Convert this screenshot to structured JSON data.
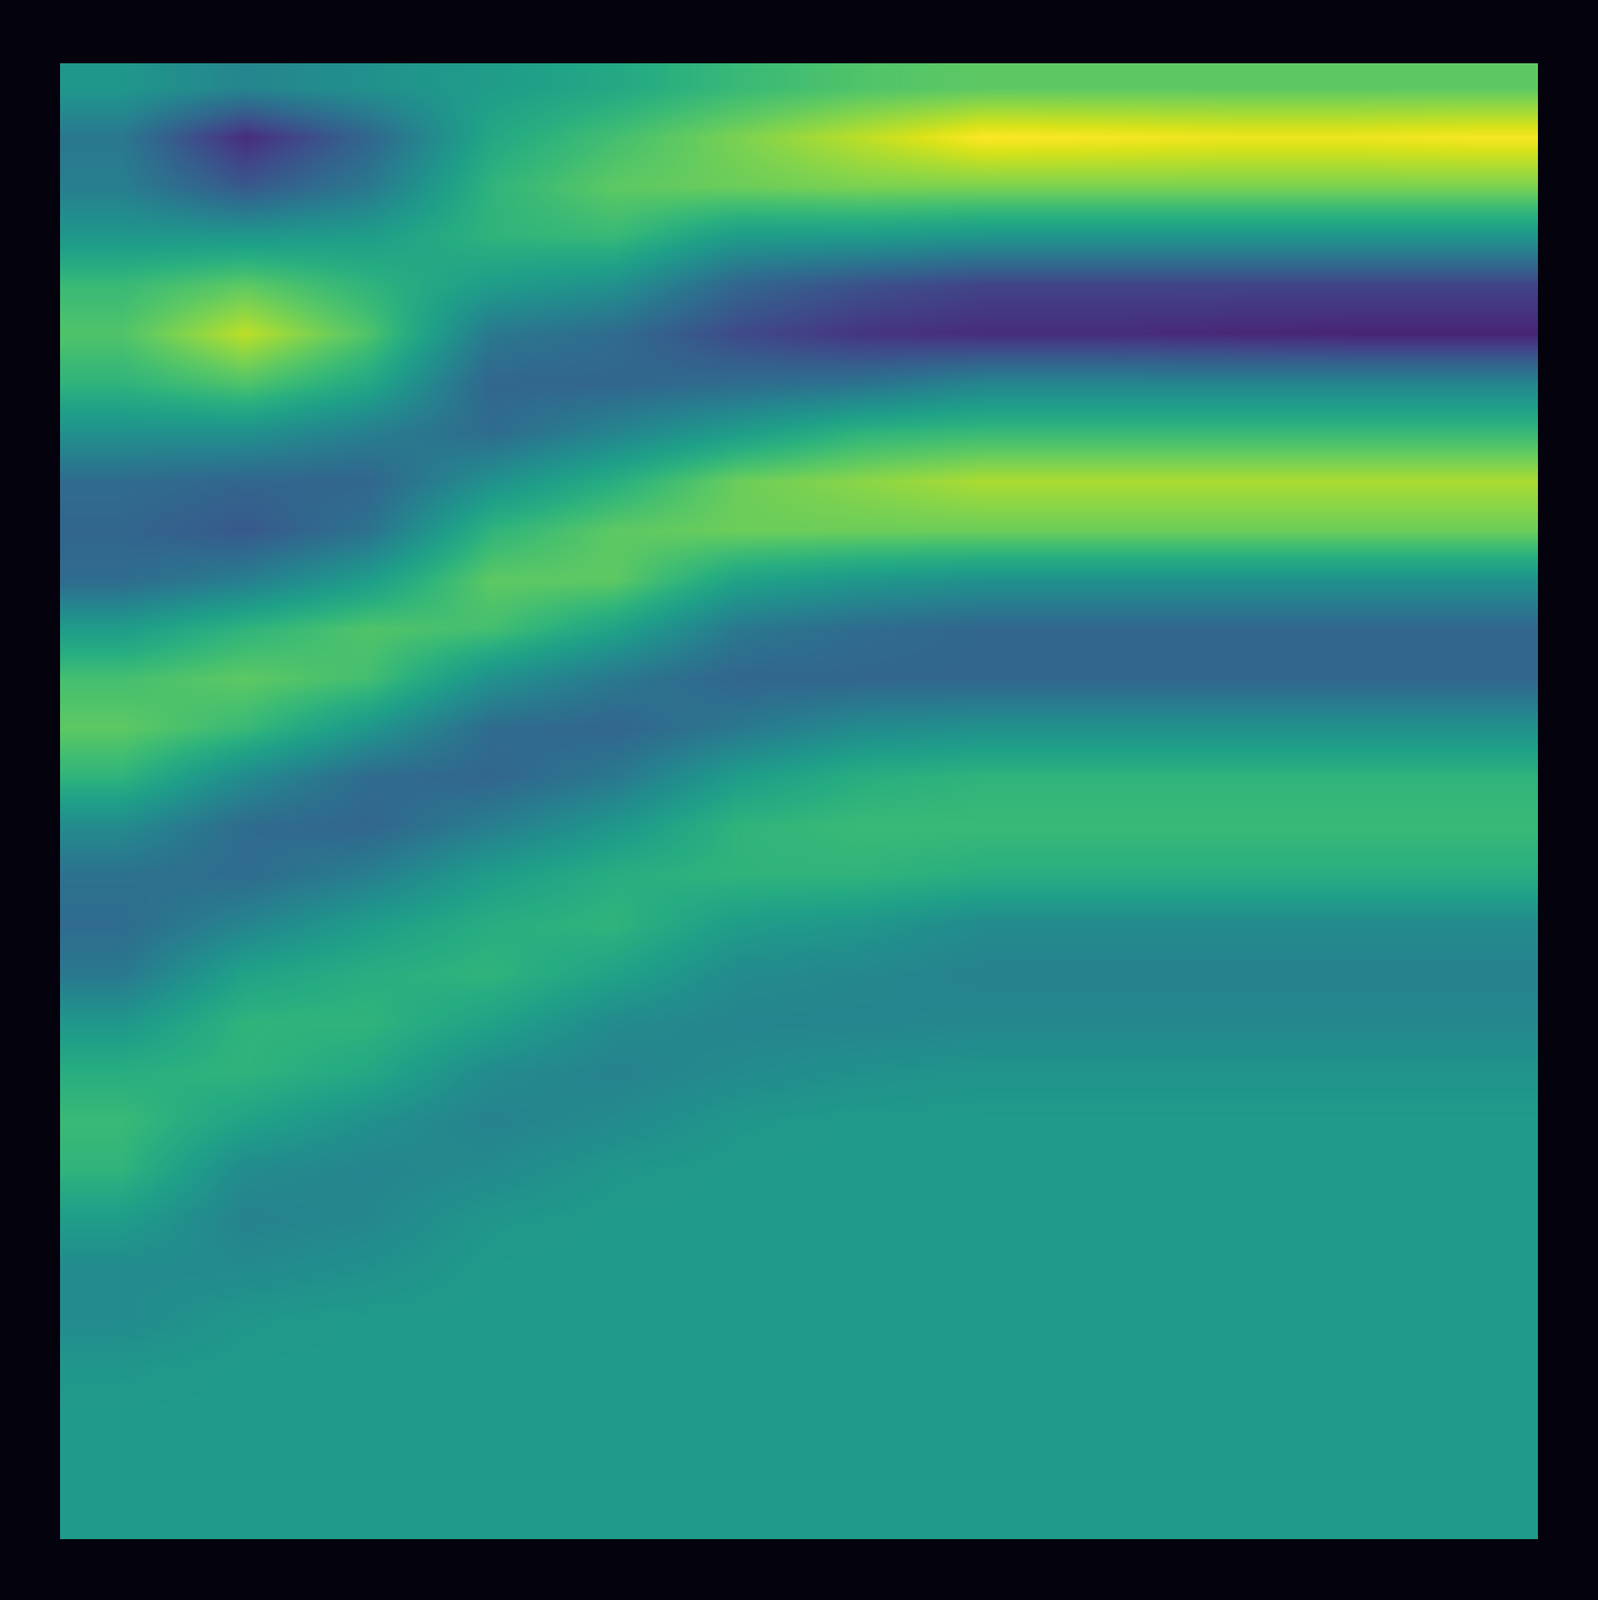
{
  "chart_data": {
    "type": "heatmap",
    "color": "Viridis",
    "tick_labels": false,
    "x": [
      0,
      1,
      2,
      3,
      4,
      5,
      6,
      7,
      8,
      9,
      10,
      11
    ],
    "y": [
      0,
      1,
      2,
      3,
      4,
      5,
      6,
      7,
      8,
      9,
      10,
      11,
      12,
      13,
      14,
      15,
      16,
      17,
      18,
      19,
      20,
      21,
      22,
      23,
      24,
      25,
      26,
      27,
      28,
      29
    ],
    "xlim": [
      -0.5,
      11.5
    ],
    "ylim": [
      29.5,
      -0.5
    ],
    "zlim": [
      -1,
      1
    ],
    "z": [
      [
        0.05,
        -0.1,
        0.0,
        0.1,
        0.2,
        0.35,
        0.45,
        0.5,
        0.5,
        0.5,
        0.5,
        0.5
      ],
      [
        -0.2,
        -0.75,
        -0.35,
        0.2,
        0.4,
        0.6,
        0.8,
        1.0,
        0.98,
        0.95,
        0.95,
        0.98
      ],
      [
        -0.15,
        -0.45,
        -0.2,
        0.3,
        0.5,
        0.55,
        0.6,
        0.6,
        0.6,
        0.6,
        0.6,
        0.6
      ],
      [
        0.05,
        0.05,
        0.1,
        0.3,
        0.35,
        0.1,
        0.1,
        0.05,
        0.05,
        0.05,
        0.05,
        0.05
      ],
      [
        0.35,
        0.5,
        0.3,
        0.1,
        0.0,
        -0.35,
        -0.5,
        -0.6,
        -0.6,
        -0.6,
        -0.6,
        -0.6
      ],
      [
        0.45,
        0.8,
        0.45,
        -0.2,
        -0.3,
        -0.55,
        -0.7,
        -0.75,
        -0.75,
        -0.78,
        -0.8,
        -0.8
      ],
      [
        0.3,
        0.45,
        0.2,
        -0.35,
        -0.35,
        -0.3,
        -0.25,
        -0.1,
        -0.1,
        -0.1,
        -0.1,
        -0.1
      ],
      [
        0.0,
        0.0,
        -0.15,
        -0.3,
        -0.1,
        0.1,
        0.3,
        0.35,
        0.35,
        0.35,
        0.35,
        0.35
      ],
      [
        -0.3,
        -0.35,
        -0.35,
        0.0,
        0.25,
        0.55,
        0.65,
        0.75,
        0.75,
        0.75,
        0.75,
        0.75
      ],
      [
        -0.35,
        -0.45,
        -0.25,
        0.3,
        0.5,
        0.55,
        0.55,
        0.55,
        0.55,
        0.55,
        0.55,
        0.55
      ],
      [
        -0.3,
        -0.15,
        0.1,
        0.5,
        0.5,
        0.15,
        0.05,
        0.0,
        0.0,
        0.0,
        0.0,
        0.0
      ],
      [
        0.1,
        0.3,
        0.45,
        0.4,
        0.15,
        -0.2,
        -0.3,
        -0.35,
        -0.35,
        -0.35,
        -0.35,
        -0.35
      ],
      [
        0.4,
        0.5,
        0.4,
        0.0,
        -0.2,
        -0.35,
        -0.35,
        -0.35,
        -0.35,
        -0.35,
        -0.35,
        -0.35
      ],
      [
        0.5,
        0.35,
        0.05,
        -0.3,
        -0.35,
        -0.2,
        -0.05,
        0.0,
        0.0,
        0.0,
        0.0,
        0.0
      ],
      [
        0.3,
        -0.05,
        -0.3,
        -0.35,
        -0.2,
        0.1,
        0.25,
        0.3,
        0.3,
        0.3,
        0.3,
        0.3
      ],
      [
        -0.05,
        -0.3,
        -0.35,
        -0.15,
        0.05,
        0.3,
        0.35,
        0.35,
        0.35,
        0.35,
        0.35,
        0.35
      ],
      [
        -0.25,
        -0.3,
        -0.15,
        0.1,
        0.25,
        0.3,
        0.3,
        0.25,
        0.25,
        0.25,
        0.25,
        0.25
      ],
      [
        -0.3,
        -0.1,
        0.1,
        0.25,
        0.3,
        0.1,
        0.05,
        -0.05,
        -0.05,
        -0.05,
        -0.05,
        -0.05
      ],
      [
        -0.2,
        0.15,
        0.25,
        0.3,
        0.15,
        -0.05,
        -0.08,
        -0.12,
        -0.12,
        -0.12,
        -0.12,
        -0.12
      ],
      [
        0.05,
        0.3,
        0.3,
        0.15,
        -0.05,
        -0.1,
        -0.1,
        -0.08,
        -0.08,
        -0.08,
        -0.08,
        -0.08
      ],
      [
        0.25,
        0.3,
        0.2,
        -0.05,
        -0.12,
        -0.05,
        0.0,
        0.03,
        0.03,
        0.03,
        0.03,
        0.03
      ],
      [
        0.35,
        0.15,
        0.0,
        -0.12,
        -0.05,
        0.05,
        0.08,
        0.08,
        0.08,
        0.08,
        0.08,
        0.08
      ],
      [
        0.3,
        -0.05,
        -0.1,
        -0.05,
        0.05,
        0.08,
        0.08,
        0.08,
        0.08,
        0.08,
        0.08,
        0.08
      ],
      [
        0.1,
        -0.12,
        -0.08,
        0.05,
        0.08,
        0.08,
        0.08,
        0.08,
        0.08,
        0.08,
        0.08,
        0.08
      ],
      [
        -0.05,
        -0.05,
        0.0,
        0.08,
        0.08,
        0.08,
        0.08,
        0.08,
        0.08,
        0.08,
        0.08,
        0.08
      ],
      [
        -0.05,
        0.05,
        0.08,
        0.08,
        0.08,
        0.08,
        0.08,
        0.08,
        0.08,
        0.08,
        0.08,
        0.08
      ],
      [
        0.05,
        0.08,
        0.08,
        0.08,
        0.08,
        0.08,
        0.08,
        0.08,
        0.08,
        0.08,
        0.08,
        0.08
      ],
      [
        0.08,
        0.08,
        0.08,
        0.08,
        0.08,
        0.08,
        0.08,
        0.08,
        0.08,
        0.08,
        0.08,
        0.08
      ],
      [
        0.08,
        0.08,
        0.08,
        0.08,
        0.08,
        0.08,
        0.08,
        0.08,
        0.08,
        0.08,
        0.08,
        0.08
      ],
      [
        0.08,
        0.08,
        0.08,
        0.08,
        0.08,
        0.08,
        0.08,
        0.08,
        0.08,
        0.08,
        0.08,
        0.08
      ]
    ]
  }
}
